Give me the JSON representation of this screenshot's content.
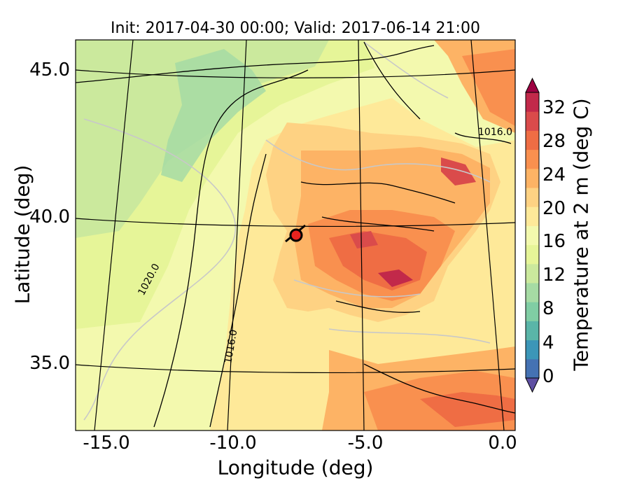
{
  "map": {
    "title": "Init: 2017-04-30 00:00; Valid: 2017-06-14 21:00",
    "xlabel": "Longitude (deg)",
    "ylabel": "Latitude (deg)",
    "lon_ticks": [
      "-15.0",
      "-10.0",
      "-5.0",
      "0.0"
    ],
    "lat_ticks": [
      "45.0",
      "40.0",
      "35.0"
    ],
    "contour_labels": [
      "1016.0",
      "1020.0",
      "1016.0"
    ],
    "marker_color": "#e8231f"
  },
  "colorbar": {
    "label": "Temperature at 2 m (deg C)",
    "ticks": [
      "0",
      "4",
      "8",
      "12",
      "16",
      "20",
      "24",
      "28",
      "32"
    ],
    "colors": [
      "#5e4fa2",
      "#4572b3",
      "#3c96b8",
      "#5ab5a8",
      "#80cda4",
      "#a6dba4",
      "#cbe99d",
      "#e6f598",
      "#f3f9ae",
      "#fee999",
      "#fed283",
      "#fdb365",
      "#f9904f",
      "#ef6d44",
      "#da4b4b",
      "#c2294a",
      "#9e0142"
    ]
  }
}
